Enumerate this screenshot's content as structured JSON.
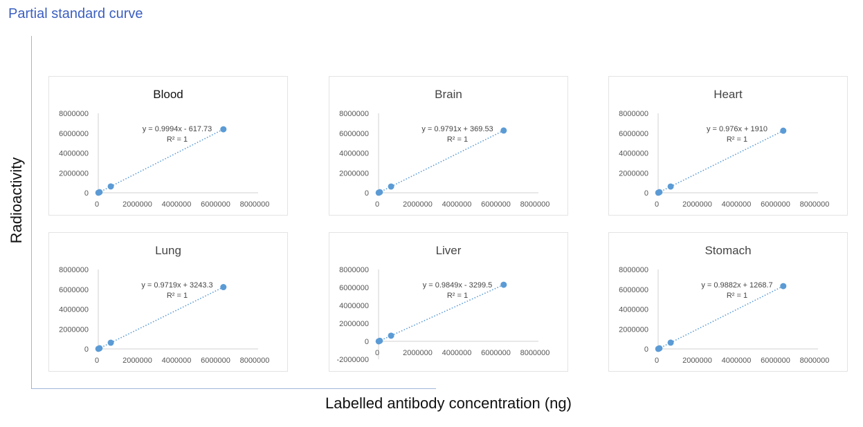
{
  "page_title": "Partial standard curve",
  "y_label": "Radioactivity",
  "x_label": "Labelled antibody concentration (ng)",
  "colors": {
    "points": "#5b9bd5",
    "trendline": "#5b9bd5",
    "title": "#3b5fc0",
    "axis": "#9fb4d8"
  },
  "chart_data": [
    {
      "type": "scatter",
      "title": "Blood",
      "x": [
        6400,
        64000,
        640000,
        6400000
      ],
      "y": [
        5779,
        63344,
        639000,
        6395500
      ],
      "trendline": {
        "equation": "y = 0.9994x - 617.73",
        "r2": "R² = 1",
        "style": "dotted"
      },
      "xlim": [
        0,
        8000000
      ],
      "ylim": [
        0,
        8000000
      ],
      "xticks": [
        "0",
        "2000000",
        "4000000",
        "6000000",
        "8000000"
      ],
      "yticks": [
        "0",
        "2000000",
        "4000000",
        "6000000",
        "8000000"
      ]
    },
    {
      "type": "scatter",
      "title": "Brain",
      "x": [
        6400,
        64000,
        640000,
        6400000
      ],
      "y": [
        6636,
        63032,
        627000,
        6266600
      ],
      "trendline": {
        "equation": "y = 0.9791x + 369.53",
        "r2": "R² = 1",
        "style": "dotted"
      },
      "xlim": [
        0,
        8000000
      ],
      "ylim": [
        0,
        8000000
      ],
      "xticks": [
        "0",
        "2000000",
        "4000000",
        "6000000",
        "8000000"
      ],
      "yticks": [
        "0",
        "2000000",
        "4000000",
        "6000000",
        "8000000"
      ]
    },
    {
      "type": "scatter",
      "title": "Heart",
      "x": [
        6400,
        64000,
        640000,
        6400000
      ],
      "y": [
        8156,
        64376,
        626550,
        6248300
      ],
      "trendline": {
        "equation": "y = 0.976x + 1910",
        "r2": "R² = 1",
        "style": "dotted"
      },
      "xlim": [
        0,
        8000000
      ],
      "ylim": [
        0,
        8000000
      ],
      "xticks": [
        "0",
        "2000000",
        "4000000",
        "6000000",
        "8000000"
      ],
      "yticks": [
        "0",
        "2000000",
        "4000000",
        "6000000",
        "8000000"
      ]
    },
    {
      "type": "scatter",
      "title": "Lung",
      "x": [
        6400,
        64000,
        640000,
        6400000
      ],
      "y": [
        9464,
        65445,
        625260,
        6223400
      ],
      "trendline": {
        "equation": "y = 0.9719x + 3243.3",
        "r2": "R² = 1",
        "style": "dotted"
      },
      "xlim": [
        0,
        8000000
      ],
      "ylim": [
        0,
        8000000
      ],
      "xticks": [
        "0",
        "2000000",
        "4000000",
        "6000000",
        "8000000"
      ],
      "yticks": [
        "0",
        "2000000",
        "4000000",
        "6000000",
        "8000000"
      ]
    },
    {
      "type": "scatter",
      "title": "Liver",
      "x": [
        6400,
        64000,
        640000,
        6400000
      ],
      "y": [
        3004,
        59734,
        627040,
        6300100
      ],
      "trendline": {
        "equation": "y = 0.9849x - 3299.5",
        "r2": "R² = 1",
        "style": "dotted"
      },
      "xlim": [
        0,
        8000000
      ],
      "ylim": [
        -2000000,
        8000000
      ],
      "xticks": [
        "0",
        "2000000",
        "4000000",
        "6000000",
        "8000000"
      ],
      "yticks": [
        "-2000000",
        "0",
        "2000000",
        "4000000",
        "6000000",
        "8000000"
      ]
    },
    {
      "type": "scatter",
      "title": "Stomach",
      "x": [
        6400,
        64000,
        640000,
        6400000
      ],
      "y": [
        7593,
        64514,
        633720,
        6325800
      ],
      "trendline": {
        "equation": "y = 0.9882x + 1268.7",
        "r2": "R² = 1",
        "style": "dotted"
      },
      "xlim": [
        0,
        8000000
      ],
      "ylim": [
        0,
        8000000
      ],
      "xticks": [
        "0",
        "2000000",
        "4000000",
        "6000000",
        "8000000"
      ],
      "yticks": [
        "0",
        "2000000",
        "4000000",
        "6000000",
        "8000000"
      ]
    }
  ]
}
